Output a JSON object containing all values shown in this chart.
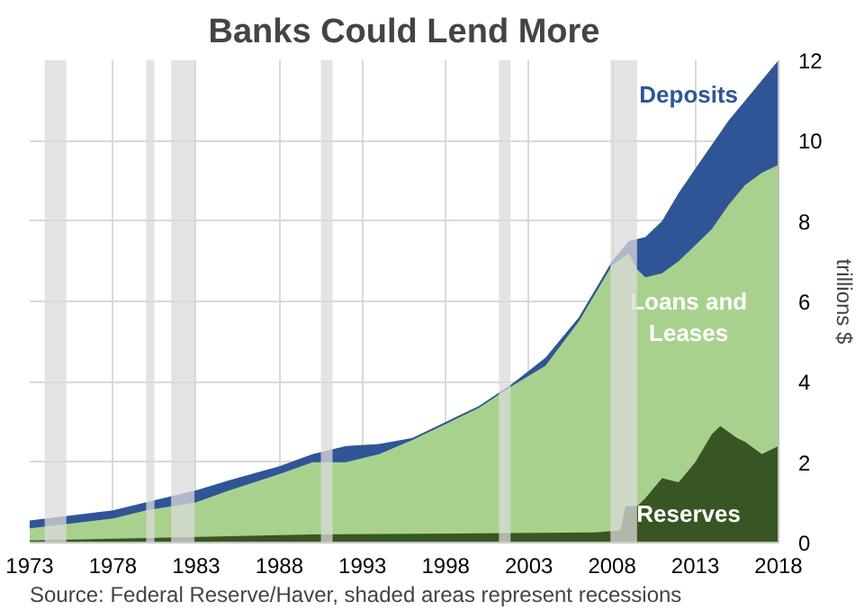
{
  "chart_data": {
    "type": "area",
    "title": "Banks Could Lend More",
    "ylabel": "trillions $",
    "grid": true,
    "xlim": [
      1973,
      2018
    ],
    "xticks": [
      1973,
      1978,
      1983,
      1988,
      1993,
      1998,
      2003,
      2008,
      2013,
      2018
    ],
    "ylim": [
      0,
      12
    ],
    "yticks": [
      0,
      2,
      4,
      6,
      8,
      10,
      12
    ],
    "series": [
      {
        "name": "Deposits",
        "color": "#2f5597",
        "x": [
          1973,
          1976,
          1978,
          1980,
          1983,
          1985,
          1988,
          1990,
          1992,
          1994,
          1996,
          1998,
          2000,
          2002,
          2004,
          2006,
          2008,
          2009,
          2010,
          2011,
          2012,
          2013,
          2014,
          2015,
          2016,
          2017,
          2018
        ],
        "values": [
          0.55,
          0.7,
          0.8,
          1.0,
          1.3,
          1.55,
          1.9,
          2.2,
          2.4,
          2.45,
          2.6,
          3.0,
          3.4,
          3.95,
          4.6,
          5.6,
          7.0,
          7.5,
          7.6,
          8.0,
          8.7,
          9.3,
          9.9,
          10.5,
          11.0,
          11.5,
          12.0
        ]
      },
      {
        "name": "Loans and Leases",
        "color": "#a9d18e",
        "x": [
          1973,
          1976,
          1978,
          1980,
          1983,
          1985,
          1988,
          1990,
          1992,
          1994,
          1996,
          1998,
          2000,
          2002,
          2004,
          2006,
          2008,
          2009,
          2009.5,
          2010,
          2011,
          2012,
          2013,
          2014,
          2015,
          2016,
          2017,
          2018
        ],
        "values": [
          0.35,
          0.5,
          0.6,
          0.8,
          1.0,
          1.3,
          1.7,
          2.0,
          2.0,
          2.2,
          2.55,
          2.95,
          3.35,
          3.9,
          4.4,
          5.5,
          6.9,
          7.2,
          6.8,
          6.6,
          6.7,
          7.0,
          7.4,
          7.8,
          8.4,
          8.9,
          9.2,
          9.4
        ]
      },
      {
        "name": "Reserves",
        "color": "#375623",
        "x": [
          1973,
          1990,
          2007,
          2008.5,
          2008.8,
          2009.5,
          2010,
          2011,
          2012,
          2013,
          2014,
          2014.5,
          2015.5,
          2016,
          2017,
          2018
        ],
        "values": [
          0.05,
          0.2,
          0.25,
          0.3,
          0.9,
          0.9,
          1.1,
          1.6,
          1.5,
          2.0,
          2.7,
          2.9,
          2.6,
          2.5,
          2.2,
          2.4
        ]
      }
    ],
    "bands": [
      {
        "axis": "x",
        "from": 1973.9,
        "to": 1975.2,
        "color": "#d9d9d9"
      },
      {
        "axis": "x",
        "from": 1980.0,
        "to": 1980.5,
        "color": "#d9d9d9"
      },
      {
        "axis": "x",
        "from": 1981.5,
        "to": 1982.9,
        "color": "#d9d9d9"
      },
      {
        "axis": "x",
        "from": 1990.5,
        "to": 1991.2,
        "color": "#d9d9d9"
      },
      {
        "axis": "x",
        "from": 2001.2,
        "to": 2001.9,
        "color": "#d9d9d9"
      },
      {
        "axis": "x",
        "from": 2007.9,
        "to": 2009.5,
        "color": "#d9d9d9"
      }
    ],
    "annotations": [
      "Source: Federal Reserve/Haver, shaded areas represent recessions"
    ]
  }
}
